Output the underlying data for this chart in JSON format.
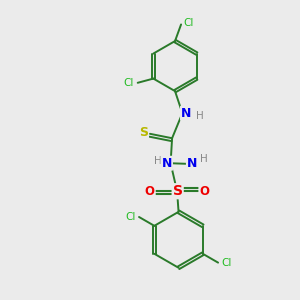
{
  "background_color": "#ebebeb",
  "bond_color": "#2a7a2a",
  "atom_colors": {
    "C": "#2a7a2a",
    "N": "#0000ee",
    "S_thio": "#b8b800",
    "S_sulfonyl": "#ee0000",
    "O": "#ee0000",
    "Cl": "#22bb22",
    "H": "#888888"
  }
}
